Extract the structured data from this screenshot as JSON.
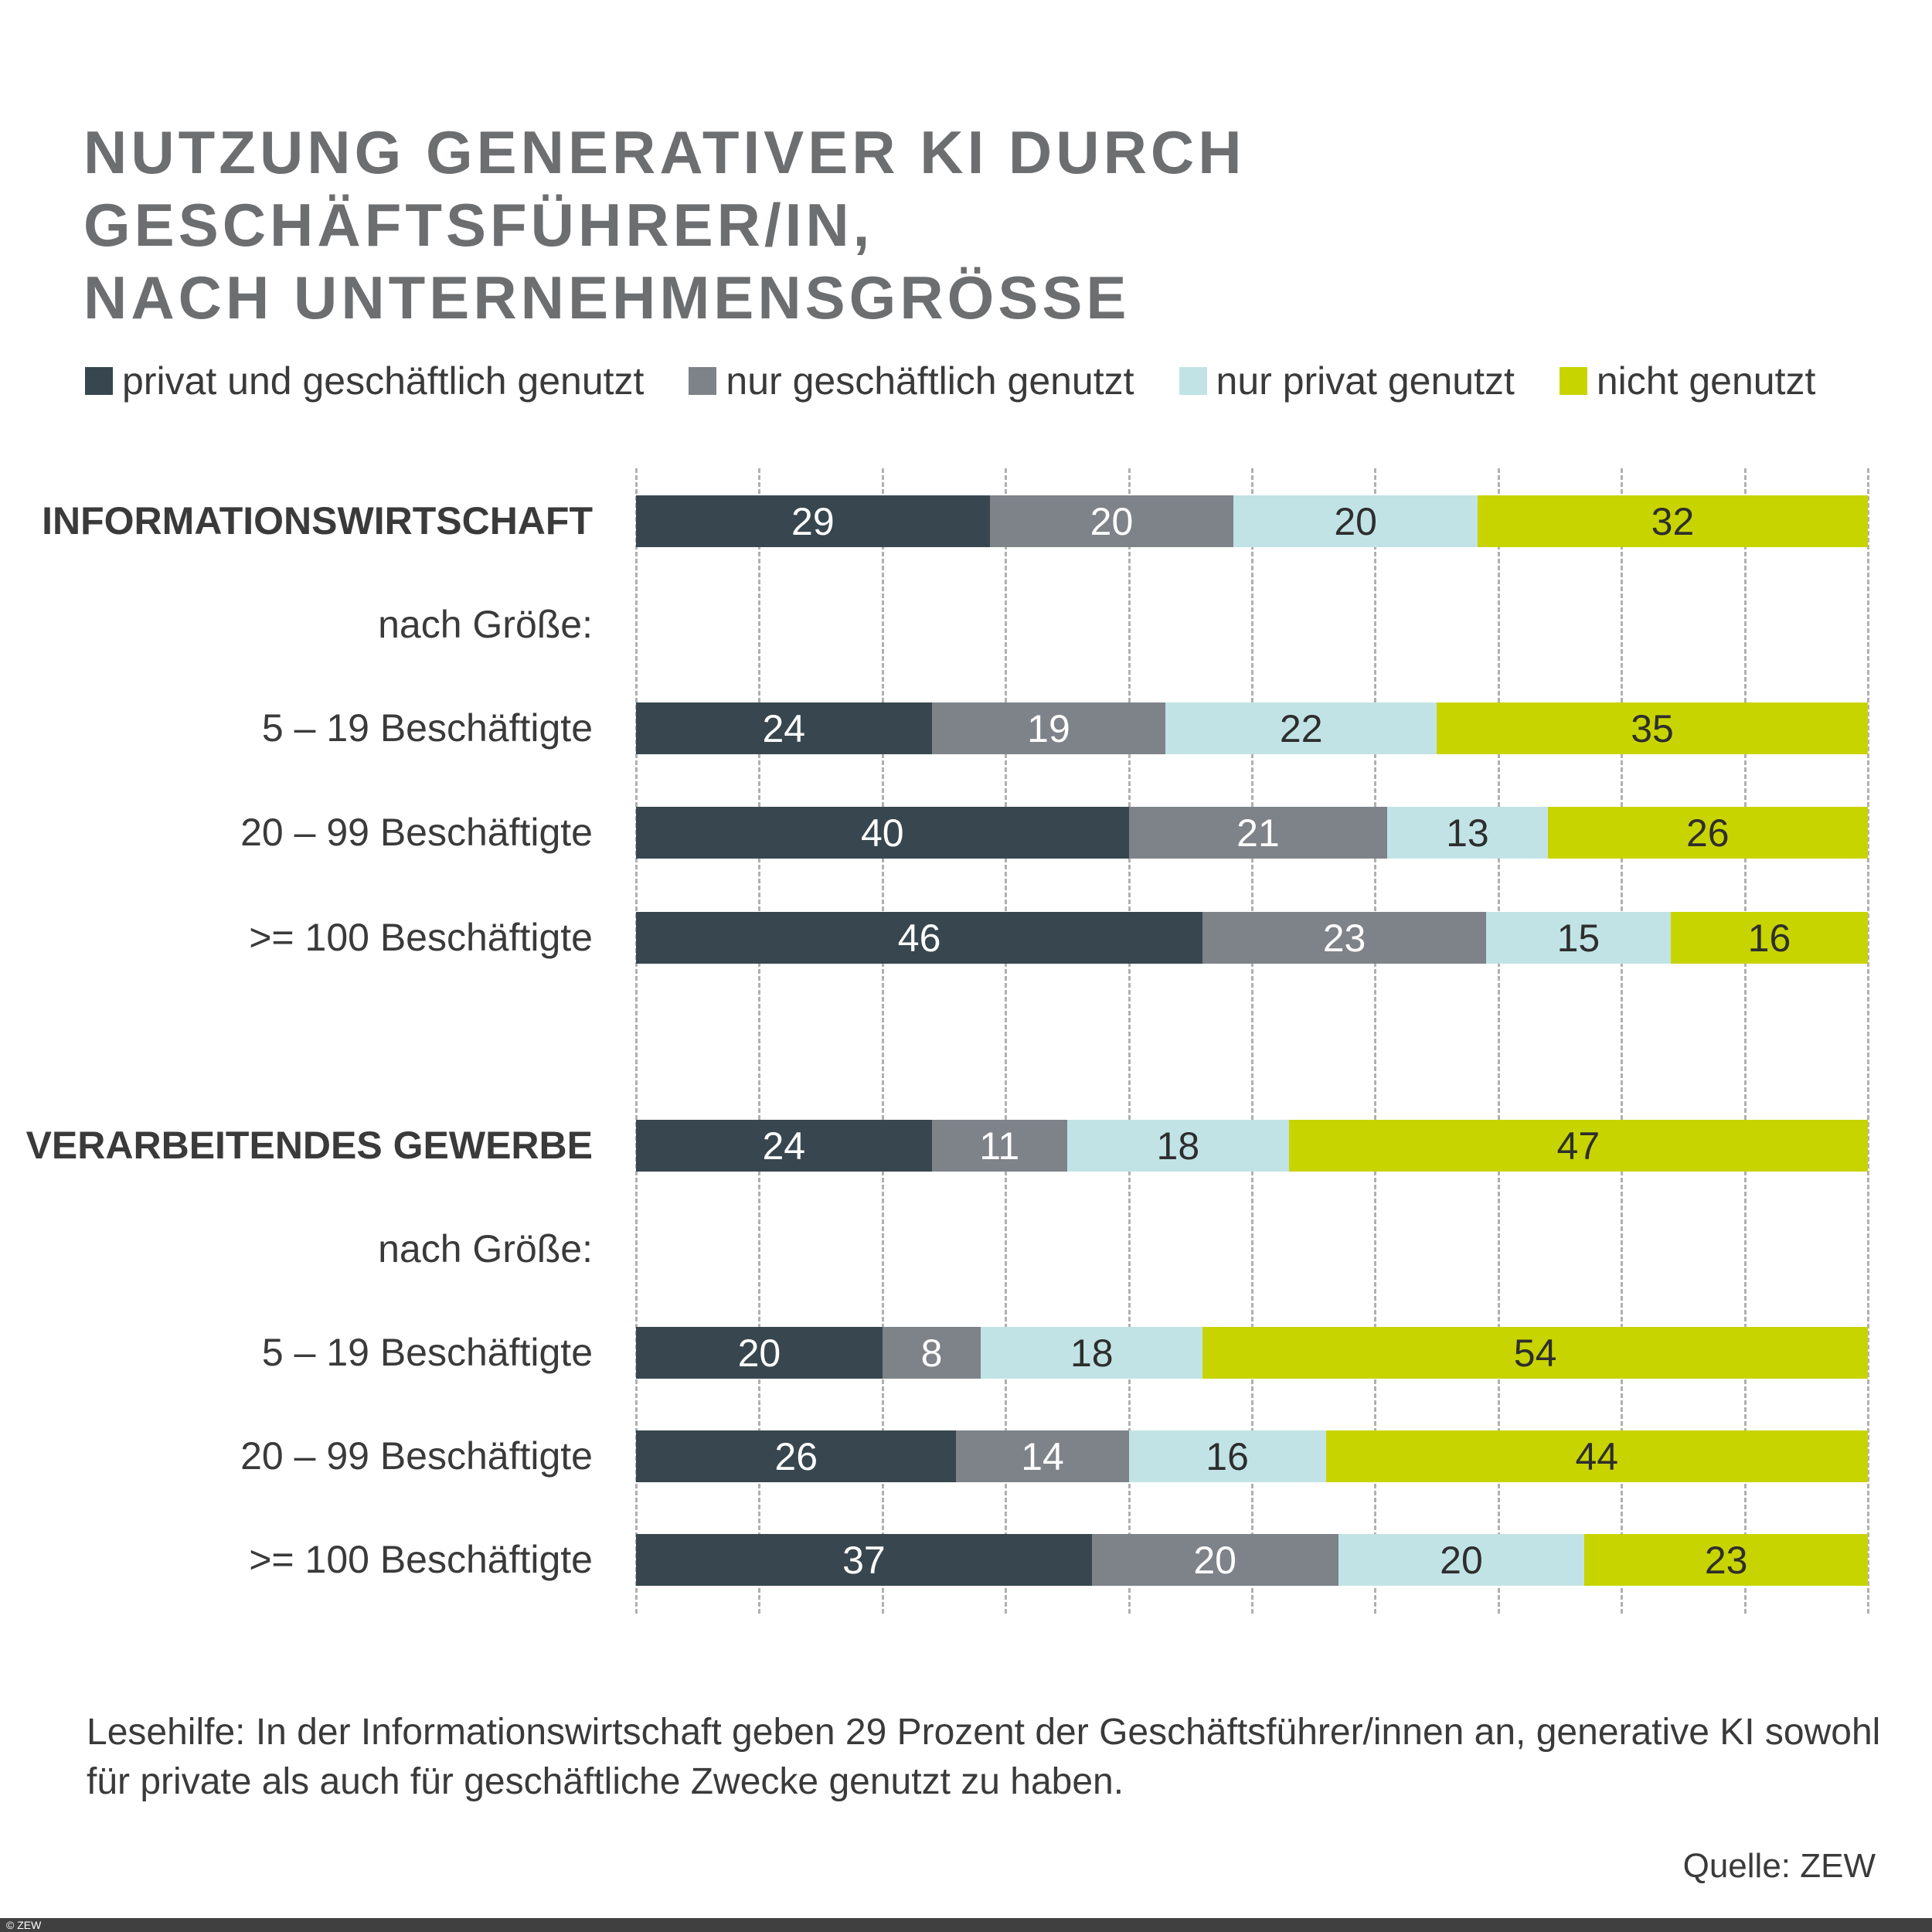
{
  "chart_data": {
    "type": "bar",
    "orientation": "horizontal",
    "stacked": true,
    "title": "NUTZUNG GENERATIVER KI DURCH GESCHÄFTSFÜHRER/IN, NACH UNTERNEHMENSGRÖSSE",
    "title_lines": [
      "NUTZUNG GENERATIVER KI DURCH GESCHÄFTSFÜHRER/IN,",
      "NACH UNTERNEHMENSGRÖSSE"
    ],
    "xlim": [
      0,
      100
    ],
    "grid": true,
    "legend_position": "top",
    "series": [
      {
        "name": "privat und geschäftlich genutzt",
        "color": "#38474f",
        "label_color": "#ffffff"
      },
      {
        "name": "nur geschäftlich genutzt",
        "color": "#7e8289",
        "label_color": "#ffffff"
      },
      {
        "name": "nur privat genutzt",
        "color": "#c1e3e5",
        "label_color": "#2e2e2e"
      },
      {
        "name": "nicht genutzt",
        "color": "#c8d400",
        "label_color": "#2e2e2e"
      }
    ],
    "rows": [
      {
        "label": "INFORMATIONSWIRTSCHAFT",
        "bold": true,
        "values": [
          29,
          20,
          20,
          32
        ]
      },
      {
        "label": "nach Größe:",
        "subheader": true
      },
      {
        "label": "5 – 19 Beschäftigte",
        "values": [
          24,
          19,
          22,
          35
        ]
      },
      {
        "label": "20 – 99 Beschäftigte",
        "values": [
          40,
          21,
          13,
          26
        ]
      },
      {
        "label": ">= 100 Beschäftigte",
        "values": [
          46,
          23,
          15,
          16
        ]
      },
      {
        "label": "VERARBEITENDES GEWERBE",
        "bold": true,
        "values": [
          24,
          11,
          18,
          47
        ]
      },
      {
        "label": "nach Größe:",
        "subheader": true
      },
      {
        "label": "5 – 19 Beschäftigte",
        "values": [
          20,
          8,
          18,
          54
        ]
      },
      {
        "label": "20 – 99 Beschäftigte",
        "values": [
          26,
          14,
          16,
          44
        ]
      },
      {
        "label": ">= 100 Beschäftigte",
        "values": [
          37,
          20,
          20,
          23
        ]
      }
    ]
  },
  "note": "Lesehilfe: In der Informationswirtschaft geben 29 Prozent der Geschäftsführer/innen an, generative KI sowohl für private als auch für geschäftliche Zwecke genutzt zu haben.",
  "source": "Quelle: ZEW",
  "footer": "© ZEW"
}
